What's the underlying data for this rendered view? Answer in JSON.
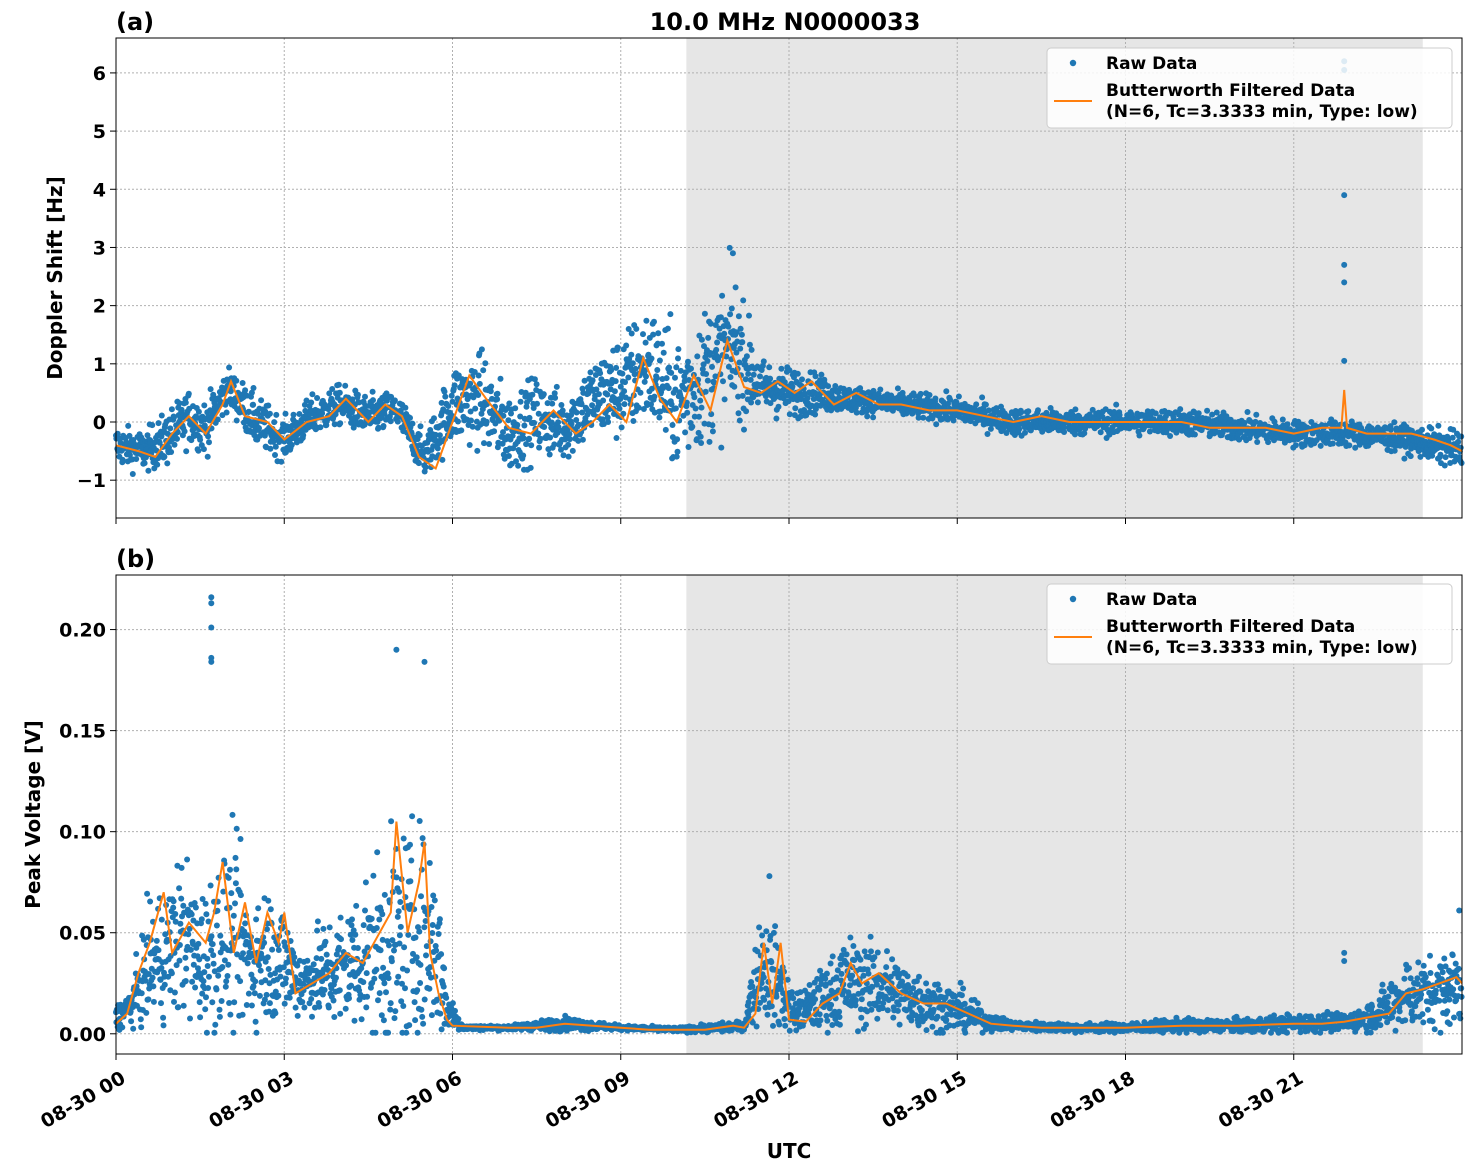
{
  "figure": {
    "title": "10.0 MHz N0000033",
    "xlabel": "UTC",
    "x_tick_labels": [
      "08-30 00",
      "08-30 03",
      "08-30 06",
      "08-30 09",
      "08-30 12",
      "08-30 15",
      "08-30 18",
      "08-30 21"
    ]
  },
  "colors": {
    "raw": "#1f77b4",
    "filtered": "#ff7f0e",
    "shade": "#e6e6e6",
    "grid": "#b0b0b0"
  },
  "legend": {
    "raw_label": "Raw Data",
    "filtered_label_line1": "Butterworth Filtered Data",
    "filtered_label_line2": "(N=6, Tc=3.3333 min, Type: low)"
  },
  "chart_data": [
    {
      "type": "scatter",
      "panel_label": "(a)",
      "title": "10.0 MHz N0000033",
      "ylabel": "Doppler Shift [Hz]",
      "xlabel": "",
      "xlim_hours": [
        0,
        24
      ],
      "ylim": [
        -1.65,
        6.6
      ],
      "y_ticks": [
        -1,
        0,
        1,
        2,
        3,
        4,
        5,
        6
      ],
      "y_tick_labels": [
        "−1",
        "0",
        "1",
        "2",
        "3",
        "4",
        "5",
        "6"
      ],
      "grid": true,
      "legend_position": "top-right",
      "shaded_region_hours": [
        10.17,
        23.3
      ],
      "series": [
        {
          "name": "Raw Data",
          "kind": "scatter",
          "x_hours": [
            0,
            0.5,
            0.9,
            1.3,
            1.6,
            2.0,
            2.5,
            3.0,
            3.5,
            4.0,
            4.5,
            5.0,
            5.5,
            6.0,
            6.5,
            7.0,
            7.5,
            8.0,
            8.5,
            9.0,
            9.5,
            10.0,
            10.5,
            11.0,
            11.5,
            12.0,
            12.5,
            13.0,
            14.0,
            15.0,
            16.0,
            17.0,
            18.0,
            19.0,
            20.0,
            21.0,
            22.0,
            23.0,
            24.0
          ],
          "y_center": [
            -0.4,
            -0.5,
            -0.3,
            0.1,
            -0.1,
            0.6,
            0.0,
            -0.3,
            0.1,
            0.3,
            0.1,
            0.2,
            -0.6,
            0.3,
            0.4,
            -0.2,
            0.1,
            -0.1,
            0.4,
            0.6,
            1.0,
            0.3,
            0.8,
            1.3,
            0.6,
            0.5,
            0.5,
            0.4,
            0.3,
            0.2,
            0.0,
            0.0,
            0.0,
            0.0,
            -0.1,
            -0.2,
            -0.2,
            -0.3,
            -0.5
          ],
          "y_spread": [
            0.3,
            0.3,
            0.4,
            0.4,
            0.4,
            0.3,
            0.4,
            0.3,
            0.3,
            0.3,
            0.3,
            0.3,
            0.3,
            0.6,
            0.7,
            0.6,
            0.6,
            0.5,
            0.6,
            0.8,
            0.9,
            1.0,
            1.0,
            1.1,
            0.4,
            0.4,
            0.3,
            0.2,
            0.2,
            0.2,
            0.2,
            0.2,
            0.2,
            0.2,
            0.2,
            0.2,
            0.2,
            0.2,
            0.3
          ],
          "outliers": [
            [
              21.9,
              6.2
            ],
            [
              21.9,
              6.05
            ],
            [
              21.9,
              3.9
            ],
            [
              21.9,
              2.7
            ],
            [
              21.9,
              2.4
            ],
            [
              21.9,
              1.05
            ],
            [
              11.0,
              2.9
            ]
          ]
        },
        {
          "name": "Butterworth Filtered Data\n(N=6, Tc=3.3333 min, Type: low)",
          "kind": "line",
          "x_hours": [
            0,
            0.4,
            0.7,
            1.0,
            1.3,
            1.6,
            1.9,
            2.05,
            2.3,
            2.7,
            3.0,
            3.4,
            3.8,
            4.1,
            4.5,
            4.8,
            5.1,
            5.4,
            5.7,
            6.0,
            6.3,
            6.6,
            7.0,
            7.4,
            7.8,
            8.2,
            8.5,
            8.8,
            9.1,
            9.4,
            9.7,
            10.0,
            10.3,
            10.6,
            10.9,
            11.2,
            11.5,
            11.8,
            12.1,
            12.4,
            12.8,
            13.2,
            13.6,
            14.0,
            14.5,
            15.0,
            15.5,
            16.0,
            16.5,
            17.0,
            17.5,
            18.0,
            18.5,
            19.0,
            19.5,
            20.0,
            20.5,
            21.0,
            21.5,
            21.85,
            21.9,
            21.95,
            22.3,
            22.7,
            23.1,
            23.5,
            23.8,
            24.0
          ],
          "y": [
            -0.4,
            -0.5,
            -0.6,
            -0.2,
            0.1,
            -0.2,
            0.3,
            0.7,
            0.1,
            0.0,
            -0.3,
            0.0,
            0.1,
            0.4,
            0.0,
            0.3,
            0.1,
            -0.6,
            -0.8,
            0.0,
            0.8,
            0.4,
            -0.1,
            -0.2,
            0.2,
            -0.2,
            0.0,
            0.3,
            0.0,
            1.1,
            0.4,
            0.0,
            0.8,
            0.2,
            1.4,
            0.6,
            0.5,
            0.7,
            0.5,
            0.7,
            0.3,
            0.5,
            0.3,
            0.3,
            0.2,
            0.2,
            0.1,
            0.0,
            0.1,
            0.0,
            0.0,
            0.0,
            0.0,
            0.0,
            -0.1,
            -0.1,
            -0.1,
            -0.2,
            -0.1,
            -0.1,
            0.55,
            -0.1,
            -0.2,
            -0.2,
            -0.2,
            -0.3,
            -0.4,
            -0.5
          ]
        }
      ]
    },
    {
      "type": "scatter",
      "panel_label": "(b)",
      "title": "",
      "ylabel": "Peak Voltage [V]",
      "xlabel": "UTC",
      "xlim_hours": [
        0,
        24
      ],
      "ylim": [
        -0.01,
        0.227
      ],
      "y_ticks": [
        0.0,
        0.05,
        0.1,
        0.15,
        0.2
      ],
      "y_tick_labels": [
        "0.00",
        "0.05",
        "0.10",
        "0.15",
        "0.20"
      ],
      "grid": true,
      "legend_position": "top-right",
      "shaded_region_hours": [
        10.17,
        23.3
      ],
      "series": [
        {
          "name": "Raw Data",
          "kind": "scatter",
          "x_hours": [
            0,
            0.3,
            0.6,
            0.9,
            1.2,
            1.5,
            1.8,
            2.1,
            2.4,
            2.7,
            3.0,
            3.3,
            3.6,
            3.9,
            4.2,
            4.5,
            4.8,
            5.1,
            5.4,
            5.7,
            5.9,
            6.2,
            7.0,
            8.0,
            9.0,
            10.0,
            10.8,
            11.2,
            11.5,
            11.8,
            12.1,
            12.5,
            13.0,
            13.5,
            14.0,
            14.5,
            15.0,
            15.5,
            16.0,
            17.0,
            18.0,
            19.0,
            20.0,
            21.0,
            22.0,
            22.5,
            23.0,
            23.5,
            24.0
          ],
          "y_center": [
            0.008,
            0.015,
            0.035,
            0.04,
            0.05,
            0.035,
            0.045,
            0.05,
            0.035,
            0.04,
            0.035,
            0.025,
            0.03,
            0.03,
            0.035,
            0.04,
            0.04,
            0.045,
            0.05,
            0.045,
            0.012,
            0.003,
            0.003,
            0.005,
            0.003,
            0.002,
            0.003,
            0.004,
            0.035,
            0.025,
            0.01,
            0.015,
            0.025,
            0.025,
            0.02,
            0.015,
            0.012,
            0.006,
            0.004,
            0.003,
            0.003,
            0.004,
            0.004,
            0.005,
            0.006,
            0.01,
            0.02,
            0.02,
            0.025
          ],
          "y_spread": [
            0.005,
            0.01,
            0.025,
            0.03,
            0.035,
            0.03,
            0.035,
            0.04,
            0.03,
            0.03,
            0.025,
            0.015,
            0.02,
            0.025,
            0.03,
            0.035,
            0.045,
            0.05,
            0.045,
            0.04,
            0.01,
            0.001,
            0.001,
            0.003,
            0.001,
            0.001,
            0.002,
            0.002,
            0.025,
            0.02,
            0.008,
            0.012,
            0.02,
            0.018,
            0.015,
            0.012,
            0.01,
            0.004,
            0.002,
            0.002,
            0.002,
            0.003,
            0.003,
            0.004,
            0.004,
            0.008,
            0.015,
            0.015,
            0.02
          ],
          "outliers": [
            [
              1.7,
              0.216
            ],
            [
              1.7,
              0.213
            ],
            [
              1.7,
              0.201
            ],
            [
              1.7,
              0.186
            ],
            [
              1.7,
              0.184
            ],
            [
              5.0,
              0.19
            ],
            [
              5.5,
              0.184
            ],
            [
              21.9,
              0.04
            ],
            [
              21.9,
              0.036
            ],
            [
              11.65,
              0.078
            ],
            [
              23.95,
              0.061
            ]
          ]
        },
        {
          "name": "Butterworth Filtered Data\n(N=6, Tc=3.3333 min, Type: low)",
          "kind": "line",
          "x_hours": [
            0,
            0.2,
            0.4,
            0.6,
            0.85,
            1.0,
            1.3,
            1.6,
            1.75,
            1.9,
            2.1,
            2.3,
            2.5,
            2.7,
            2.9,
            3.0,
            3.2,
            3.5,
            3.8,
            4.1,
            4.4,
            4.7,
            4.9,
            5.0,
            5.2,
            5.4,
            5.5,
            5.6,
            5.75,
            5.9,
            6.0,
            7.0,
            7.5,
            8.0,
            8.5,
            9.0,
            9.5,
            10.0,
            10.5,
            11.0,
            11.2,
            11.4,
            11.55,
            11.7,
            11.85,
            12.0,
            12.3,
            12.6,
            12.9,
            13.1,
            13.3,
            13.6,
            14.0,
            14.4,
            14.8,
            15.2,
            15.6,
            16.0,
            16.5,
            17.0,
            18.0,
            19.0,
            20.0,
            21.0,
            21.5,
            21.9,
            22.3,
            22.7,
            23.0,
            23.3,
            23.6,
            23.9,
            24.0
          ],
          "y": [
            0.005,
            0.01,
            0.03,
            0.045,
            0.07,
            0.04,
            0.055,
            0.045,
            0.06,
            0.085,
            0.04,
            0.065,
            0.035,
            0.06,
            0.045,
            0.06,
            0.02,
            0.025,
            0.03,
            0.04,
            0.035,
            0.05,
            0.06,
            0.105,
            0.05,
            0.075,
            0.095,
            0.04,
            0.02,
            0.007,
            0.004,
            0.003,
            0.003,
            0.005,
            0.004,
            0.003,
            0.002,
            0.002,
            0.002,
            0.004,
            0.003,
            0.01,
            0.045,
            0.015,
            0.045,
            0.007,
            0.006,
            0.015,
            0.02,
            0.035,
            0.025,
            0.03,
            0.02,
            0.015,
            0.015,
            0.01,
            0.005,
            0.004,
            0.003,
            0.003,
            0.003,
            0.004,
            0.004,
            0.005,
            0.005,
            0.006,
            0.008,
            0.01,
            0.02,
            0.022,
            0.025,
            0.028,
            0.025
          ]
        }
      ]
    }
  ]
}
